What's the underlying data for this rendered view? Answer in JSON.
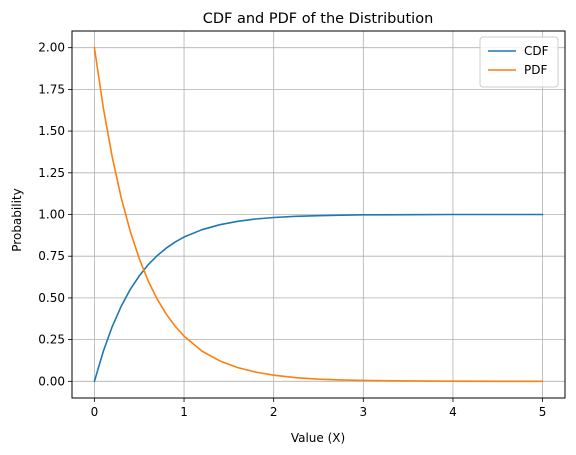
{
  "chart_data": {
    "type": "line",
    "title": "CDF and PDF of the Distribution",
    "xlabel": "Value (X)",
    "ylabel": "Probability",
    "xlim": [
      -0.25,
      5.25
    ],
    "ylim": [
      -0.1,
      2.1
    ],
    "xticks": [
      0,
      1,
      2,
      3,
      4,
      5
    ],
    "xtick_labels": [
      "0",
      "1",
      "2",
      "3",
      "4",
      "5"
    ],
    "yticks": [
      0,
      0.25,
      0.5,
      0.75,
      1.0,
      1.25,
      1.5,
      1.75,
      2.0
    ],
    "ytick_labels": [
      "0.00",
      "0.25",
      "0.50",
      "0.75",
      "1.00",
      "1.25",
      "1.50",
      "1.75",
      "2.00"
    ],
    "grid": true,
    "legend_position": "top-right",
    "series": [
      {
        "name": "CDF",
        "color": "#1f77b4",
        "x": [
          0,
          0.1,
          0.2,
          0.3,
          0.4,
          0.5,
          0.6,
          0.7,
          0.8,
          0.9,
          1.0,
          1.2,
          1.4,
          1.6,
          1.8,
          2.0,
          2.25,
          2.5,
          2.75,
          3.0,
          3.5,
          4.0,
          4.5,
          5.0
        ],
        "y": [
          0.0,
          0.181,
          0.33,
          0.451,
          0.551,
          0.632,
          0.699,
          0.753,
          0.798,
          0.835,
          0.865,
          0.909,
          0.939,
          0.959,
          0.973,
          0.982,
          0.989,
          0.993,
          0.996,
          0.998,
          0.999,
          1.0,
          1.0,
          1.0
        ]
      },
      {
        "name": "PDF",
        "color": "#ff7f0e",
        "x": [
          0,
          0.1,
          0.2,
          0.3,
          0.4,
          0.5,
          0.6,
          0.7,
          0.8,
          0.9,
          1.0,
          1.2,
          1.4,
          1.6,
          1.8,
          2.0,
          2.25,
          2.5,
          2.75,
          3.0,
          3.5,
          4.0,
          4.5,
          5.0
        ],
        "y": [
          2.0,
          1.637,
          1.341,
          1.098,
          0.899,
          0.736,
          0.602,
          0.493,
          0.404,
          0.331,
          0.271,
          0.181,
          0.122,
          0.082,
          0.055,
          0.037,
          0.022,
          0.013,
          0.008,
          0.005,
          0.002,
          0.001,
          0.0,
          0.0
        ]
      }
    ]
  }
}
